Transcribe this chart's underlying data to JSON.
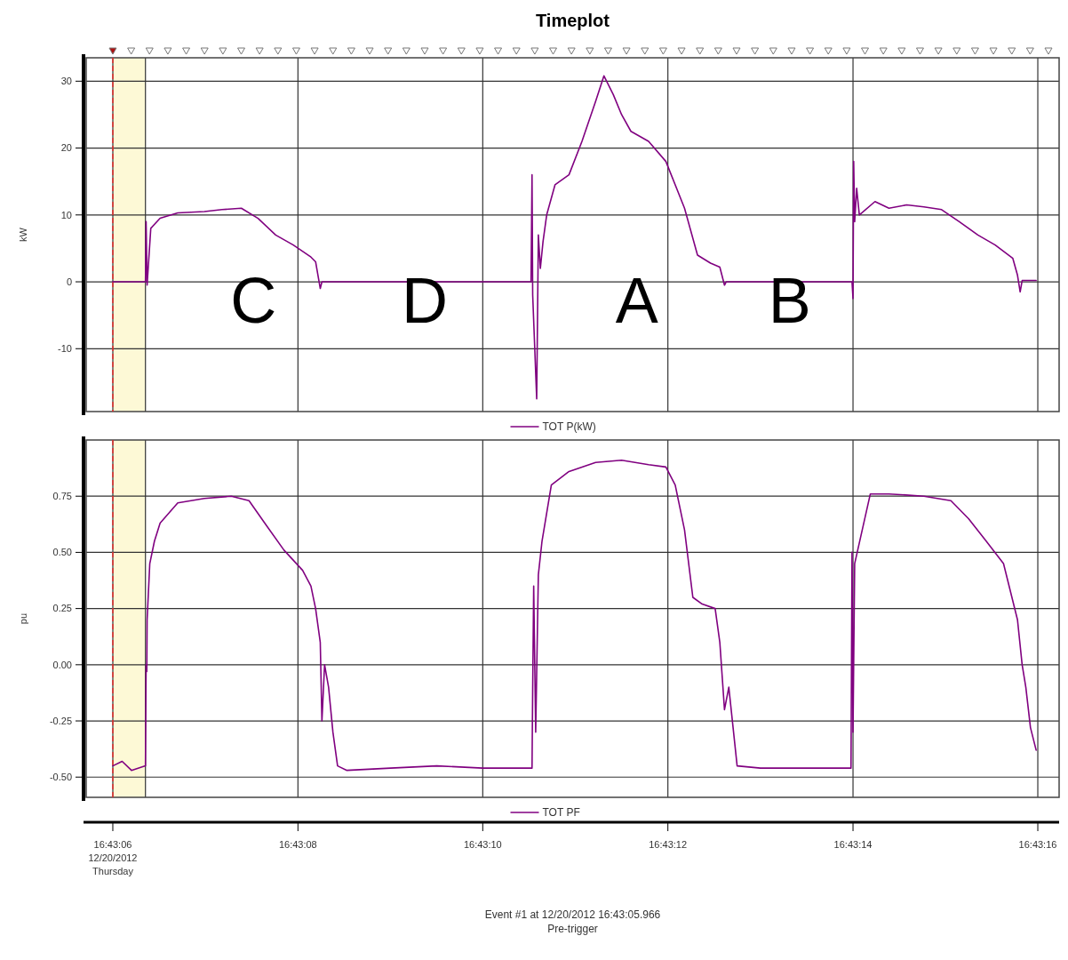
{
  "chart_data": [
    {
      "type": "line",
      "title": "Timeplot",
      "ylabel": "kW",
      "xlim": [
        16.718253,
        16.721175
      ],
      "ylim": [
        -19.4,
        33.5
      ],
      "yticks": [
        -10,
        0,
        10,
        20,
        30
      ],
      "xticks": [
        {
          "value": 16.718333,
          "label": null
        },
        {
          "value": 16.718889,
          "label": null
        },
        {
          "value": 16.719444,
          "label": null
        },
        {
          "value": 16.72,
          "label": null
        },
        {
          "value": 16.720556,
          "label": null
        },
        {
          "value": 16.721111,
          "label": null
        }
      ],
      "tick_labels": "y",
      "grid": true,
      "legend": "bottom",
      "marker": "none",
      "line_style": "solid",
      "ref_lines": [
        {
          "axis": "x",
          "value": 16.718333,
          "color": "#e8322f",
          "line_style": "dashed"
        }
      ],
      "bands": [
        {
          "axis": "x",
          "from": 16.718333,
          "to": 16.718431,
          "color": "#fdf9d6"
        }
      ],
      "annotations": [
        "C",
        "D",
        "A",
        "B"
      ],
      "series": [
        {
          "name": "TOT P(kW)",
          "color": "#800080",
          "x": [
            16.718333,
            16.718431,
            16.718433,
            16.718436,
            16.718447,
            16.718475,
            16.718528,
            16.718608,
            16.718661,
            16.718719,
            16.718769,
            16.718822,
            16.718875,
            16.718928,
            16.718942,
            16.718956,
            16.718961,
            16.719589,
            16.719592,
            16.719594,
            16.719606,
            16.719611,
            16.719617,
            16.719625,
            16.719636,
            16.719661,
            16.719703,
            16.719742,
            16.719783,
            16.719808,
            16.719836,
            16.719861,
            16.719889,
            16.719942,
            16.719994,
            16.72005,
            16.720089,
            16.720128,
            16.720156,
            16.72017,
            16.720175,
            16.720553,
            16.720556,
            16.720558,
            16.720561,
            16.720567,
            16.720575,
            16.720622,
            16.720664,
            16.720717,
            16.720769,
            16.720822,
            16.720875,
            16.720931,
            16.720983,
            16.721036,
            16.72105,
            16.721058,
            16.721064,
            16.721106
          ],
          "values": [
            0,
            0,
            9,
            -0.5,
            8,
            9.5,
            10.3,
            10.5,
            10.8,
            11,
            9.5,
            7,
            5.5,
            3.7,
            3,
            -1,
            0,
            0,
            16,
            -2,
            -17.5,
            7,
            2,
            6,
            10,
            14.5,
            16,
            21,
            27,
            30.8,
            28,
            25,
            22.5,
            21,
            18,
            11,
            4,
            2.8,
            2.2,
            -0.5,
            0,
            0,
            -2.5,
            18,
            9,
            14,
            10,
            12,
            11,
            11.5,
            11.2,
            10.8,
            9,
            7,
            5.5,
            3.5,
            1,
            -1.5,
            0.2,
            0.2
          ]
        }
      ]
    },
    {
      "type": "line",
      "ylabel": "pu",
      "xlim": [
        16.718253,
        16.721175
      ],
      "ylim": [
        -0.59,
        1.0
      ],
      "yticks": [
        {
          "value": -0.5,
          "label": "-0.50"
        },
        {
          "value": -0.25,
          "label": "-0.25"
        },
        {
          "value": 0,
          "label": "0.00"
        },
        {
          "value": 0.25,
          "label": "0.25"
        },
        {
          "value": 0.5,
          "label": "0.50"
        },
        {
          "value": 0.75,
          "label": "0.75"
        }
      ],
      "xticks": [
        {
          "value": 16.718333,
          "label": "16:43:06\n12/20/2012\nThursday"
        },
        {
          "value": 16.718889,
          "label": "16:43:08"
        },
        {
          "value": 16.719444,
          "label": "16:43:10"
        },
        {
          "value": 16.72,
          "label": "16:43:12"
        },
        {
          "value": 16.720556,
          "label": "16:43:14"
        },
        {
          "value": 16.721111,
          "label": "16:43:16"
        }
      ],
      "grid": true,
      "legend": "bottom",
      "marker": "none",
      "line_style": "solid",
      "ref_lines": [
        {
          "axis": "x",
          "value": 16.718333,
          "color": "#e8322f",
          "line_style": "dashed"
        }
      ],
      "bands": [
        {
          "axis": "x",
          "from": 16.718333,
          "to": 16.718431,
          "color": "#fdf9d6"
        }
      ],
      "annotations": [
        "Event #1 at 12/20/2012 16:43:05.966",
        "Pre-trigger"
      ],
      "series": [
        {
          "name": "TOT PF",
          "color": "#800080",
          "x": [
            16.718333,
            16.718361,
            16.718389,
            16.718431,
            16.718433,
            16.718435,
            16.718436,
            16.718444,
            16.718458,
            16.718475,
            16.718528,
            16.718608,
            16.718689,
            16.718742,
            16.718794,
            16.718847,
            16.718903,
            16.718928,
            16.718942,
            16.718956,
            16.718961,
            16.718969,
            16.718981,
            16.718994,
            16.719008,
            16.719036,
            16.719167,
            16.719306,
            16.719444,
            16.719592,
            16.719594,
            16.719597,
            16.719603,
            16.719611,
            16.719622,
            16.71965,
            16.719703,
            16.719783,
            16.719861,
            16.719942,
            16.719994,
            16.720022,
            16.72005,
            16.720075,
            16.720103,
            16.720142,
            16.720156,
            16.72017,
            16.720183,
            16.720208,
            16.720278,
            16.720417,
            16.72055,
            16.720553,
            16.720556,
            16.720561,
            16.720608,
            16.720664,
            16.720769,
            16.72085,
            16.720903,
            16.720956,
            16.721008,
            16.72105,
            16.721064,
            16.721075,
            16.721089,
            16.721106
          ],
          "values": [
            -0.45,
            -0.43,
            -0.47,
            -0.45,
            0,
            -0.03,
            0.2,
            0.45,
            0.55,
            0.63,
            0.72,
            0.74,
            0.75,
            0.73,
            0.62,
            0.51,
            0.42,
            0.35,
            0.25,
            0.1,
            -0.25,
            0,
            -0.1,
            -0.3,
            -0.45,
            -0.47,
            -0.46,
            -0.45,
            -0.46,
            -0.46,
            -0.1,
            0.35,
            -0.3,
            0.4,
            0.55,
            0.8,
            0.86,
            0.9,
            0.91,
            0.89,
            0.88,
            0.8,
            0.6,
            0.3,
            0.27,
            0.25,
            0.1,
            -0.2,
            -0.1,
            -0.45,
            -0.46,
            -0.46,
            -0.46,
            0.5,
            -0.3,
            0.45,
            0.76,
            0.76,
            0.75,
            0.73,
            0.65,
            0.55,
            0.45,
            0.2,
            0,
            -0.1,
            -0.28,
            -0.38
          ]
        }
      ]
    }
  ]
}
